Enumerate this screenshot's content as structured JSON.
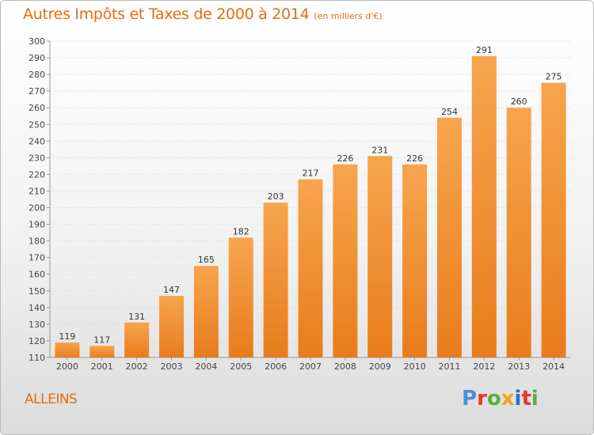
{
  "header": {
    "title": "Autres Impôts et Taxes de 2000 à 2014",
    "unit": "(en milliers d'€)"
  },
  "footer": {
    "place": "ALLEINS",
    "logo": "Proxiti"
  },
  "colors": {
    "bar_light": "#f7a54e",
    "bar_dark": "#e87c1c",
    "title": "#e0700f",
    "logo_letters": [
      "#4a90d9",
      "#e0392b",
      "#5cae3c",
      "#f2a21b",
      "#2d6fc2",
      "#e0392b",
      "#5cae3c"
    ]
  },
  "chart_data": {
    "type": "bar",
    "title": "Autres Impôts et Taxes de 2000 à 2014",
    "subtitle": "(en milliers d'€)",
    "categories": [
      "2000",
      "2001",
      "2002",
      "2003",
      "2004",
      "2005",
      "2006",
      "2007",
      "2008",
      "2009",
      "2010",
      "2011",
      "2012",
      "2013",
      "2014"
    ],
    "values": [
      119,
      117,
      131,
      147,
      165,
      182,
      203,
      217,
      226,
      231,
      226,
      254,
      291,
      260,
      275
    ],
    "ylim": [
      110,
      300
    ],
    "yticks": [
      110,
      120,
      130,
      140,
      150,
      160,
      170,
      180,
      190,
      200,
      210,
      220,
      230,
      240,
      250,
      260,
      270,
      280,
      290,
      300
    ],
    "grid": true,
    "xlabel": "",
    "ylabel": ""
  }
}
